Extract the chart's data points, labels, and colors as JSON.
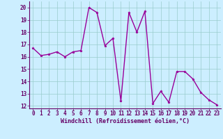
{
  "x": [
    0,
    1,
    2,
    3,
    4,
    5,
    6,
    7,
    8,
    9,
    10,
    11,
    12,
    13,
    14,
    15,
    16,
    17,
    18,
    19,
    20,
    21,
    22,
    23
  ],
  "y": [
    16.7,
    16.1,
    16.2,
    16.4,
    16.0,
    16.4,
    16.5,
    20.0,
    19.6,
    16.9,
    17.5,
    12.4,
    19.6,
    18.0,
    19.7,
    12.2,
    13.2,
    12.3,
    14.8,
    14.8,
    14.2,
    13.1,
    12.5,
    12.1
  ],
  "line_color": "#990099",
  "marker": "*",
  "marker_color": "#990099",
  "bg_color": "#cceeff",
  "grid_color": "#99cccc",
  "xlabel": "Windchill (Refroidissement éolien,°C)",
  "xlim": [
    -0.5,
    23.5
  ],
  "ylim": [
    11.8,
    20.5
  ],
  "yticks": [
    12,
    13,
    14,
    15,
    16,
    17,
    18,
    19,
    20
  ],
  "xticks": [
    0,
    1,
    2,
    3,
    4,
    5,
    6,
    7,
    8,
    9,
    10,
    11,
    12,
    13,
    14,
    15,
    16,
    17,
    18,
    19,
    20,
    21,
    22,
    23
  ],
  "xlabel_fontsize": 6.0,
  "tick_fontsize": 5.5,
  "line_width": 1.0,
  "marker_size": 2.5
}
